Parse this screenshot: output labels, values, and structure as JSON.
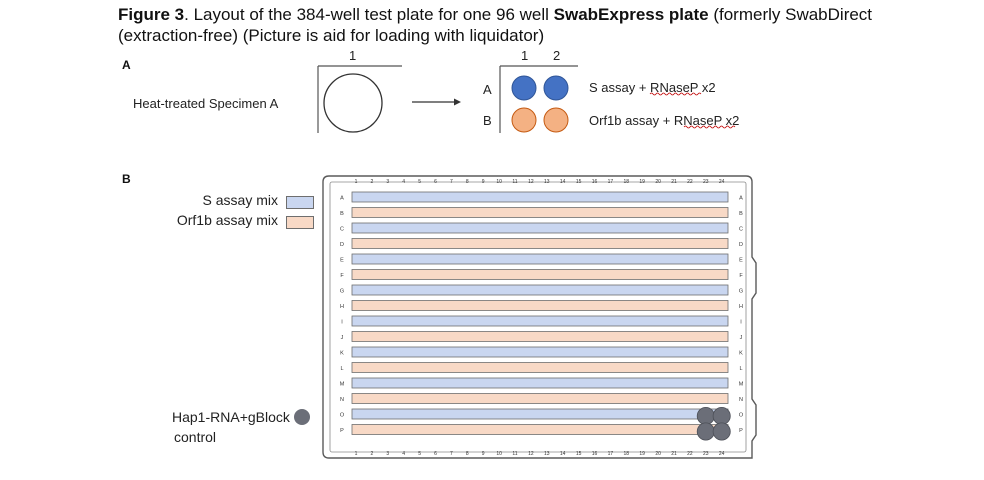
{
  "figure": {
    "label": "Figure 3",
    "title_main": ". Layout of the 384-well test plate for one 96 well ",
    "title_bold": "SwabExpress plate",
    "title_rest": " (formerly SwabDirect (extraction-free) (Picture is aid for loading with liquidator)"
  },
  "panel_a": {
    "label": "A",
    "specimen_label": "Heat-treated Specimen A",
    "source_col": "1",
    "dest_cols": [
      "1",
      "2"
    ],
    "dest_rows": [
      "A",
      "B"
    ],
    "row_a_text": "S assay + RNaseP x2",
    "row_b_text": "Orf1b assay + RNaseP x2"
  },
  "panel_b": {
    "label": "B",
    "legend_s": "S assay mix",
    "legend_orf": "Orf1b assay mix",
    "control_line1": "Hap1-RNA+gBlock",
    "control_line2": "control",
    "columns": [
      "1",
      "2",
      "3",
      "4",
      "5",
      "6",
      "7",
      "8",
      "9",
      "10",
      "11",
      "12",
      "13",
      "14",
      "15",
      "16",
      "17",
      "18",
      "19",
      "20",
      "21",
      "22",
      "23",
      "24"
    ],
    "rows": [
      "A",
      "B",
      "C",
      "D",
      "E",
      "F",
      "G",
      "H",
      "I",
      "J",
      "K",
      "L",
      "M",
      "N",
      "O",
      "P"
    ],
    "row_mix": [
      "S",
      "O",
      "S",
      "O",
      "S",
      "O",
      "S",
      "O",
      "S",
      "O",
      "S",
      "O",
      "S",
      "O",
      "S",
      "O"
    ],
    "control_wells": [
      "O23",
      "O24",
      "P23",
      "P24"
    ]
  },
  "colors": {
    "s_mix": "#c9d6f0",
    "orf_mix": "#f8d9c6",
    "blue_well": "#4472c4",
    "orange_well": "#f4b183",
    "control": "#6b6e78",
    "outline": "#6e6e6e"
  }
}
